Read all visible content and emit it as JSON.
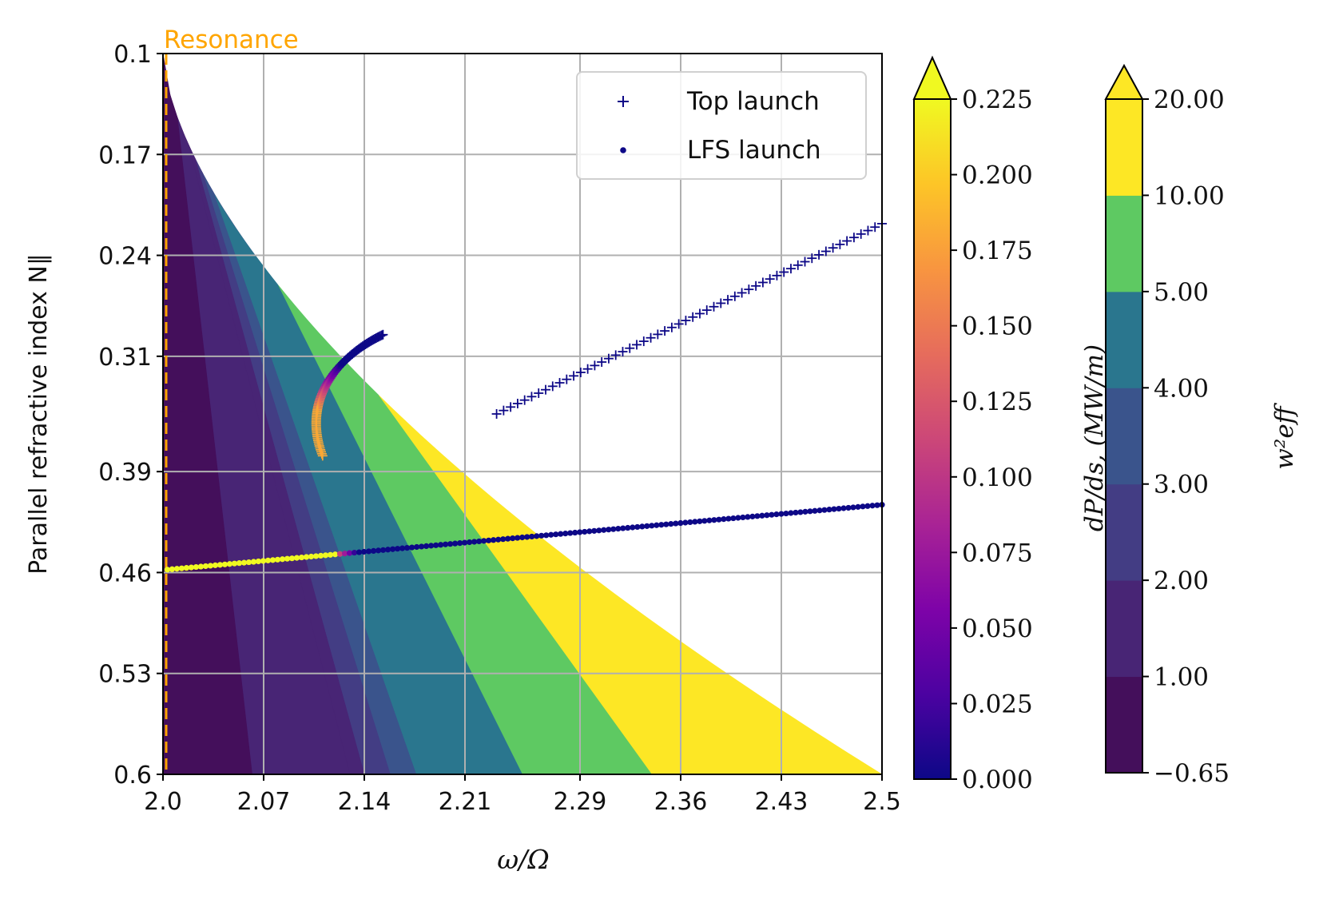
{
  "chart_data": {
    "type": "scatter",
    "title": "",
    "xlabel": "ω/Ω",
    "ylabel": "Parallel refractive index N∥",
    "xlim": [
      2.0,
      2.5
    ],
    "ylim": [
      0.1,
      0.6
    ],
    "y_inverted": true,
    "grid": true,
    "x_ticks": [
      "2.0",
      "2.07",
      "2.14",
      "2.21",
      "2.29",
      "2.36",
      "2.43",
      "2.5"
    ],
    "y_ticks": [
      "0.1",
      "0.17",
      "0.24",
      "0.31",
      "0.39",
      "0.46",
      "0.53",
      "0.6"
    ],
    "resonance": {
      "label": "Resonance",
      "x": 2.0,
      "color": "#ffa500"
    },
    "contour": {
      "colorbar_label": "w²eff",
      "levels": [
        -0.65,
        1.0,
        2.0,
        3.0,
        4.0,
        5.0,
        10.0,
        20.0
      ],
      "tick_labels": [
        "−0.65",
        "1.00",
        "2.00",
        "3.00",
        "4.00",
        "5.00",
        "10.00",
        "20.00"
      ],
      "colors": [
        "#440f5b",
        "#482575",
        "#433d84",
        "#3a548c",
        "#2a768e",
        "#5ec962",
        "#fde725"
      ],
      "extend": "max"
    },
    "power": {
      "colorbar_label": "dP/ds, (MW/m)",
      "range": [
        0.0,
        0.225
      ],
      "tick_labels": [
        "0.000",
        "0.025",
        "0.050",
        "0.075",
        "0.100",
        "0.125",
        "0.150",
        "0.175",
        "0.200",
        "0.225"
      ],
      "colormap": "plasma",
      "extend": "max"
    },
    "legend": {
      "position": "upper right",
      "entries": [
        "Top launch",
        "LFS launch"
      ]
    },
    "series": [
      {
        "name": "Top launch",
        "marker": "plus",
        "segments": [
          {
            "x_range": [
              2.232,
              2.5
            ],
            "y_range": [
              0.35,
              0.218
            ],
            "dPds": 0.0
          },
          {
            "curve": [
              [
                2.153,
                0.295
              ],
              [
                2.125,
                0.308
              ],
              [
                2.095,
                0.338
              ],
              [
                2.111,
                0.379
              ]
            ],
            "dPds_range": [
              0.0,
              0.18
            ]
          }
        ]
      },
      {
        "name": "LFS launch",
        "marker": "dot",
        "segments": [
          {
            "x_range": [
              2.003,
              2.5
            ],
            "y_range": [
              0.458,
              0.413
            ],
            "dPds_profile": "0.225 until ω/Ω≈2.12, then ≈0"
          }
        ]
      }
    ]
  }
}
